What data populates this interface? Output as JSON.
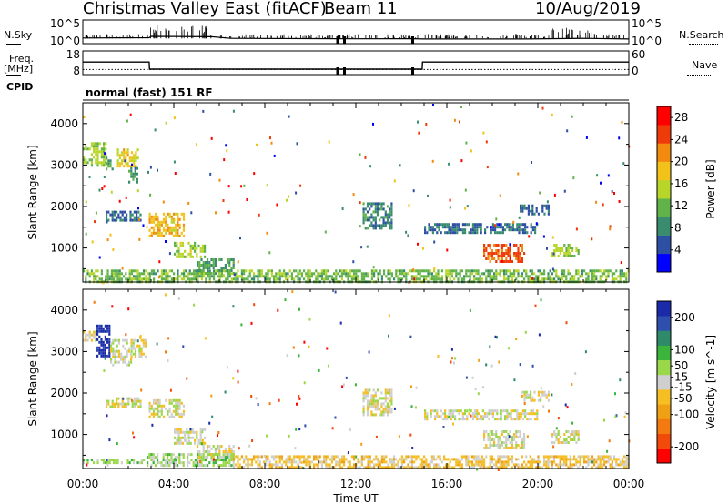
{
  "header": {
    "title": "Christmas Valley East (fitACF)",
    "beam": "Beam 11",
    "date": "10/Aug/2019"
  },
  "side_labels": {
    "nsky": "N.Sky",
    "nsearch": "N.Search",
    "freq": "Freq.",
    "freq_unit": "[MHz]",
    "nave": "Nave",
    "cpid": "CPID",
    "mode": "normal (fast) 151 RF"
  },
  "colors": {
    "power_scale": [
      "#0000ff",
      "#2d4fa4",
      "#3a8c6e",
      "#62b24a",
      "#b7d629",
      "#f2c21a",
      "#f28a10",
      "#ef3a0a",
      "#ff0000"
    ],
    "velocity_scale": [
      "#ff0000",
      "#f24a0a",
      "#f27a10",
      "#f0a015",
      "#f5be22",
      "#cfcfcf",
      "#9ad84a",
      "#3ab43a",
      "#2f8a6a",
      "#2f4fae",
      "#1a2aa8"
    ],
    "noise_trace": "#000000"
  },
  "chart_data": [
    {
      "type": "line",
      "panel": "noise",
      "series": [
        {
          "name": "N.Sky",
          "style": "solid"
        },
        {
          "name": "N.Search",
          "style": "dotted"
        }
      ],
      "x": [
        "00:00",
        "02:55",
        "03:00",
        "05:40",
        "06:30",
        "11:10",
        "11:30",
        "14:30",
        "15:00",
        "19:30",
        "22:00",
        "24:00"
      ],
      "y_left_label": "N.Sky",
      "y_left_ticks": [
        "10^5",
        "10^0"
      ],
      "y_right_label": "N.Search",
      "y_right_ticks": [
        "10^5",
        "10^0"
      ],
      "sky_level_log10": [
        0.6,
        0.7,
        1.1,
        1.0,
        0.5,
        0.4,
        0.35,
        0.4,
        0.3,
        0.3,
        0.5,
        0.3
      ]
    },
    {
      "type": "line",
      "panel": "frequency",
      "series": [
        {
          "name": "Freq.",
          "style": "solid"
        },
        {
          "name": "Nave",
          "style": "dotted"
        }
      ],
      "time": [
        "00:00",
        "02:55",
        "02:56",
        "14:55",
        "14:56",
        "24:00"
      ],
      "freq_mhz": [
        13.3,
        13.3,
        10.3,
        10.3,
        13.3,
        13.3
      ],
      "nave": [
        13,
        13,
        13,
        13,
        13,
        13
      ],
      "y_left_label": "Freq. [MHz]",
      "y_left_ticks": [
        "18",
        "8"
      ],
      "y_right_label": "Nave",
      "y_right_ticks": [
        "60",
        "0"
      ],
      "ylim": [
        8,
        18
      ],
      "nave_lim": [
        0,
        60
      ]
    },
    {
      "type": "heatmap",
      "panel": "power",
      "ylabel": "Slant Range [km]",
      "yticks": [
        1000,
        2000,
        3000,
        4000
      ],
      "ylim": [
        180,
        4500
      ],
      "xlim": [
        0,
        24
      ],
      "colorbar_label": "Power [dB]",
      "colorbar_ticks": [
        4,
        8,
        12,
        16,
        20,
        24,
        28
      ],
      "colorbar_range": [
        0,
        30
      ],
      "patches": [
        {
          "t0": 0.0,
          "t1": 1.0,
          "r0": 3000,
          "r1": 3550,
          "value": 14
        },
        {
          "t0": 1.0,
          "t1": 1.3,
          "r0": 2900,
          "r1": 3200,
          "value": 10
        },
        {
          "t0": 1.5,
          "t1": 2.4,
          "r0": 3000,
          "r1": 3400,
          "value": 18
        },
        {
          "t0": 2.0,
          "t1": 2.4,
          "r0": 2600,
          "r1": 2950,
          "value": 8
        },
        {
          "t0": 1.0,
          "t1": 2.5,
          "r0": 1700,
          "r1": 1900,
          "value": 6
        },
        {
          "t0": 2.9,
          "t1": 4.4,
          "r0": 1300,
          "r1": 1850,
          "value": 19
        },
        {
          "t0": 4.0,
          "t1": 5.4,
          "r0": 800,
          "r1": 1150,
          "value": 14
        },
        {
          "t0": 5.0,
          "t1": 6.6,
          "r0": 400,
          "r1": 750,
          "value": 10
        },
        {
          "t0": 12.3,
          "t1": 13.6,
          "r0": 1500,
          "r1": 2100,
          "value": 8
        },
        {
          "t0": 15.0,
          "t1": 20.0,
          "r0": 1350,
          "r1": 1600,
          "value": 6
        },
        {
          "t0": 17.6,
          "t1": 19.4,
          "r0": 700,
          "r1": 1100,
          "value": 24
        },
        {
          "t0": 19.2,
          "t1": 20.5,
          "r0": 1800,
          "r1": 2050,
          "value": 6
        },
        {
          "t0": 20.6,
          "t1": 21.8,
          "r0": 800,
          "r1": 1100,
          "value": 14
        },
        {
          "t0": 0.0,
          "t1": 24.0,
          "r0": 200,
          "r1": 480,
          "value": 12
        }
      ]
    },
    {
      "type": "heatmap",
      "panel": "velocity",
      "xlabel": "Time UT",
      "xticks": [
        "00:00",
        "04:00",
        "08:00",
        "12:00",
        "16:00",
        "20:00",
        "00:00"
      ],
      "ylabel": "Slant Range [km]",
      "yticks": [
        1000,
        2000,
        3000,
        4000
      ],
      "ylim": [
        180,
        4500
      ],
      "xlim": [
        0,
        24
      ],
      "colorbar_label": "Velocity [m s^-1]",
      "colorbar_ticks": [
        -200,
        -100,
        -50,
        -15,
        15,
        50,
        100,
        200
      ],
      "colorbar_range": [
        -250,
        250
      ],
      "patches": [
        {
          "t0": 0.0,
          "t1": 0.6,
          "r0": 3250,
          "r1": 3500,
          "value": 0
        },
        {
          "t0": 0.6,
          "t1": 1.2,
          "r0": 2900,
          "r1": 3650,
          "value": 230
        },
        {
          "t0": 1.2,
          "t1": 2.1,
          "r0": 2700,
          "r1": 3300,
          "value": 0
        },
        {
          "t0": 2.1,
          "t1": 2.8,
          "r0": 2900,
          "r1": 3300,
          "value": 0
        },
        {
          "t0": 1.0,
          "t1": 2.5,
          "r0": 1700,
          "r1": 1900,
          "value": 0
        },
        {
          "t0": 2.9,
          "t1": 4.4,
          "r0": 1400,
          "r1": 1850,
          "value": 0
        },
        {
          "t0": 4.0,
          "t1": 5.4,
          "r0": 800,
          "r1": 1150,
          "value": 0
        },
        {
          "t0": 5.0,
          "t1": 6.6,
          "r0": 450,
          "r1": 750,
          "value": 0
        },
        {
          "t0": 12.3,
          "t1": 13.6,
          "r0": 1500,
          "r1": 2100,
          "value": 0
        },
        {
          "t0": 15.0,
          "t1": 20.0,
          "r0": 1350,
          "r1": 1600,
          "value": 0
        },
        {
          "t0": 17.6,
          "t1": 19.4,
          "r0": 650,
          "r1": 1100,
          "value": 0
        },
        {
          "t0": 19.2,
          "t1": 20.5,
          "r0": 1800,
          "r1": 2050,
          "value": 0
        },
        {
          "t0": 20.6,
          "t1": 21.8,
          "r0": 800,
          "r1": 1100,
          "value": 0
        },
        {
          "t0": 0.0,
          "t1": 2.8,
          "r0": 300,
          "r1": 420,
          "value": 40
        },
        {
          "t0": 2.8,
          "t1": 6.6,
          "r0": 250,
          "r1": 550,
          "value": 40
        },
        {
          "t0": 6.6,
          "t1": 24.0,
          "r0": 200,
          "r1": 500,
          "value": -40
        }
      ]
    }
  ]
}
